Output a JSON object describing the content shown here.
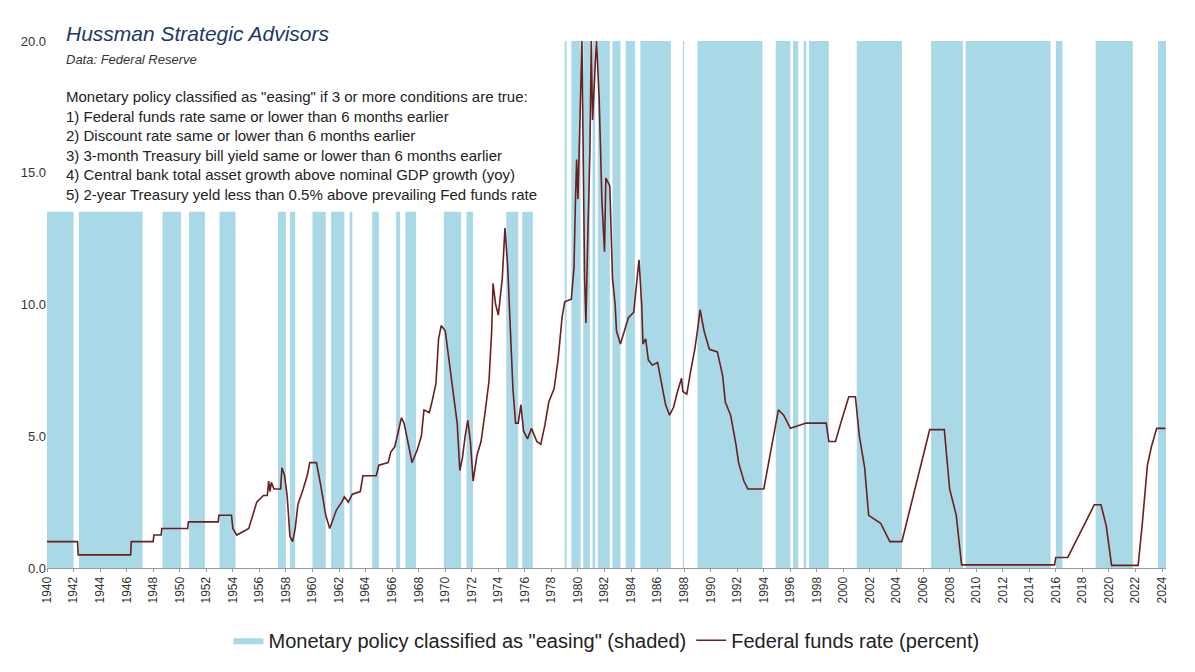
{
  "chart_data": {
    "type": "line",
    "title": "Hussman Strategic Advisors",
    "subtitle": "Data: Federal Reserve",
    "annotations": [
      "Monetary policy classified as \"easing\" if 3 or more conditions are true:",
      "1) Federal funds rate same or lower than 6 months earlier",
      "2) Discount rate same or lower than 6 months earlier",
      "3) 3-month Treasury bill yield same or lower than 6 months earlier",
      "4) Central bank total asset growth above nominal GDP growth (yoy)",
      "5) 2-year Treasury yeld less than 0.5% above prevailing Fed funds rate"
    ],
    "x": [
      1940.0,
      1942.3,
      1942.35,
      1946.3,
      1946.35,
      1948.0,
      1948.05,
      1948.6,
      1948.65,
      1950.6,
      1950.65,
      1952.9,
      1952.95,
      1953.9,
      1954.0,
      1954.3,
      1955.2,
      1955.5,
      1955.8,
      1956.3,
      1956.6,
      1956.7,
      1956.8,
      1956.9,
      1957.1,
      1957.6,
      1957.7,
      1957.9,
      1958.1,
      1958.3,
      1958.5,
      1958.7,
      1958.9,
      1959.3,
      1959.6,
      1959.8,
      1960.3,
      1960.6,
      1961.0,
      1961.3,
      1961.8,
      1962.2,
      1962.4,
      1962.7,
      1963.0,
      1963.6,
      1963.8,
      1964.8,
      1965.0,
      1965.7,
      1965.9,
      1966.2,
      1966.5,
      1966.7,
      1966.9,
      1967.3,
      1967.5,
      1967.9,
      1968.2,
      1968.4,
      1968.8,
      1969.0,
      1969.3,
      1969.5,
      1969.7,
      1970.0,
      1970.3,
      1970.6,
      1970.9,
      1971.1,
      1971.3,
      1971.5,
      1971.7,
      1971.9,
      1972.1,
      1972.4,
      1972.7,
      1973.0,
      1973.3,
      1973.5,
      1973.6,
      1973.8,
      1974.0,
      1974.3,
      1974.5,
      1974.7,
      1974.9,
      1975.1,
      1975.3,
      1975.5,
      1975.7,
      1975.9,
      1976.2,
      1976.5,
      1976.9,
      1977.2,
      1977.5,
      1977.8,
      1978.2,
      1978.5,
      1978.8,
      1979.0,
      1979.5,
      1979.7,
      1979.8,
      1979.9,
      1980.0,
      1980.2,
      1980.3,
      1980.5,
      1980.6,
      1980.75,
      1980.9,
      1981.0,
      1981.1,
      1981.3,
      1981.4,
      1981.6,
      1981.8,
      1982.0,
      1982.1,
      1982.4,
      1982.6,
      1982.8,
      1982.9,
      1983.2,
      1983.5,
      1983.8,
      1984.2,
      1984.5,
      1984.6,
      1984.8,
      1984.9,
      1985.1,
      1985.3,
      1985.6,
      1986.0,
      1986.3,
      1986.6,
      1986.9,
      1987.2,
      1987.5,
      1987.8,
      1987.9,
      1988.2,
      1988.5,
      1988.8,
      1989.0,
      1989.2,
      1989.5,
      1989.9,
      1990.5,
      1990.9,
      1991.1,
      1991.5,
      1991.9,
      1992.1,
      1992.5,
      1992.8,
      1994.0,
      1994.3,
      1994.7,
      1995.1,
      1995.5,
      1996.0,
      1997.2,
      1998.7,
      1998.9,
      1999.4,
      1999.8,
      2000.4,
      2000.9,
      2001.2,
      2001.6,
      2001.9,
      2002.8,
      2003.5,
      2004.4,
      2006.5,
      2007.6,
      2008.0,
      2008.5,
      2008.9,
      2015.9,
      2016.0,
      2016.9,
      2017.2,
      2018.9,
      2019.4,
      2019.8,
      2020.2,
      2022.2,
      2022.5,
      2022.9,
      2023.2,
      2023.6,
      2024.25
    ],
    "series": [
      {
        "name": "Federal funds rate (percent)",
        "color": "#6b1f1f",
        "values": [
          1.0,
          1.0,
          0.5,
          0.5,
          1.0,
          1.0,
          1.25,
          1.25,
          1.5,
          1.5,
          1.75,
          1.75,
          2.0,
          2.0,
          1.5,
          1.25,
          1.5,
          2.0,
          2.5,
          2.75,
          2.75,
          3.3,
          2.9,
          3.25,
          3.0,
          3.0,
          3.8,
          3.5,
          2.7,
          1.2,
          1.0,
          1.5,
          2.4,
          3.0,
          3.5,
          4.0,
          4.0,
          3.2,
          2.0,
          1.5,
          2.2,
          2.5,
          2.7,
          2.5,
          2.8,
          2.9,
          3.5,
          3.5,
          3.9,
          4.0,
          4.4,
          4.6,
          5.3,
          5.7,
          5.5,
          4.5,
          4.0,
          4.5,
          5.0,
          6.0,
          5.9,
          6.3,
          7.0,
          8.7,
          9.2,
          9.0,
          7.8,
          6.6,
          5.5,
          3.7,
          4.2,
          5.0,
          5.6,
          4.8,
          3.3,
          4.3,
          4.8,
          5.9,
          7.1,
          9.0,
          10.8,
          10.0,
          9.6,
          11.0,
          12.9,
          11.5,
          9.0,
          6.8,
          5.5,
          5.5,
          6.2,
          5.2,
          4.9,
          5.3,
          4.8,
          4.7,
          5.4,
          6.3,
          6.8,
          7.9,
          9.5,
          10.1,
          10.2,
          11.4,
          13.7,
          15.5,
          14.0,
          17.6,
          20.0,
          11.0,
          9.3,
          12.8,
          15.8,
          20.0,
          17.0,
          19.1,
          20.0,
          17.8,
          14.0,
          12.0,
          14.8,
          14.5,
          11.0,
          10.0,
          9.0,
          8.5,
          9.0,
          9.5,
          9.7,
          11.2,
          11.7,
          10.0,
          8.5,
          8.7,
          7.9,
          7.7,
          7.8,
          7.0,
          6.2,
          5.8,
          6.1,
          6.7,
          7.2,
          6.7,
          6.6,
          7.5,
          8.3,
          9.0,
          9.8,
          9.0,
          8.3,
          8.2,
          7.3,
          6.3,
          5.8,
          4.7,
          4.0,
          3.3,
          3.0,
          3.0,
          3.8,
          4.8,
          6.0,
          5.8,
          5.3,
          5.5,
          5.5,
          4.8,
          4.8,
          5.5,
          6.5,
          6.5,
          5.0,
          3.8,
          2.0,
          1.7,
          1.0,
          1.0,
          5.25,
          5.25,
          3.0,
          2.0,
          0.12,
          0.12,
          0.4,
          0.4,
          0.7,
          2.4,
          2.4,
          1.6,
          0.1,
          0.1,
          1.6,
          3.9,
          4.6,
          5.3,
          5.3
        ]
      }
    ],
    "shaded": {
      "name": "Monetary policy classified as \"easing\" (shaded)",
      "color": "#a9d9e6",
      "periods": [
        [
          1940.0,
          1942.0
        ],
        [
          1942.4,
          1947.2
        ],
        [
          1948.7,
          1950.1
        ],
        [
          1950.7,
          1951.9
        ],
        [
          1953.0,
          1954.2
        ],
        [
          1957.4,
          1958.0
        ],
        [
          1958.3,
          1958.7
        ],
        [
          1960.0,
          1961.0
        ],
        [
          1961.4,
          1962.4
        ],
        [
          1962.8,
          1963.0
        ],
        [
          1964.5,
          1965.0
        ],
        [
          1966.3,
          1966.6
        ],
        [
          1967.0,
          1967.8
        ],
        [
          1969.9,
          1971.2
        ],
        [
          1971.6,
          1972.1
        ],
        [
          1974.6,
          1975.5
        ],
        [
          1975.8,
          1976.6
        ],
        [
          1979.0,
          1979.15
        ],
        [
          1979.5,
          1980.2
        ],
        [
          1980.4,
          1980.9
        ],
        [
          1981.1,
          1981.3
        ],
        [
          1981.5,
          1982.4
        ],
        [
          1982.6,
          1983.2
        ],
        [
          1983.6,
          1984.3
        ],
        [
          1984.7,
          1987.0
        ],
        [
          1987.9,
          1988.0
        ],
        [
          1989.0,
          1993.9
        ],
        [
          1994.9,
          1996.0
        ],
        [
          1996.2,
          1996.6
        ],
        [
          1997.0,
          1997.2
        ],
        [
          1997.4,
          1998.9
        ],
        [
          2001.0,
          2004.4
        ],
        [
          2006.6,
          2009.0
        ],
        [
          2009.2,
          2015.6
        ],
        [
          2016.0,
          2016.5
        ],
        [
          2019.0,
          2021.8
        ],
        [
          2023.7,
          2024.3
        ]
      ]
    },
    "xlim": [
      1940,
      2024.3
    ],
    "xticks": [
      1940,
      1942,
      1944,
      1946,
      1948,
      1950,
      1952,
      1954,
      1956,
      1958,
      1960,
      1962,
      1964,
      1966,
      1968,
      1970,
      1972,
      1974,
      1976,
      1978,
      1980,
      1982,
      1984,
      1986,
      1988,
      1990,
      1992,
      1994,
      1996,
      1998,
      2000,
      2002,
      2004,
      2006,
      2008,
      2010,
      2012,
      2014,
      2016,
      2018,
      2020,
      2022,
      2024
    ],
    "ylim": [
      0,
      20
    ],
    "yticks": [
      {
        "value": 0,
        "label": "0.0"
      },
      {
        "value": 5,
        "label": "5.0"
      },
      {
        "value": 10,
        "label": "10.0"
      },
      {
        "value": 15,
        "label": "15.0"
      },
      {
        "value": 20,
        "label": "20.0"
      }
    ],
    "grid": false,
    "legend": "bottom"
  }
}
